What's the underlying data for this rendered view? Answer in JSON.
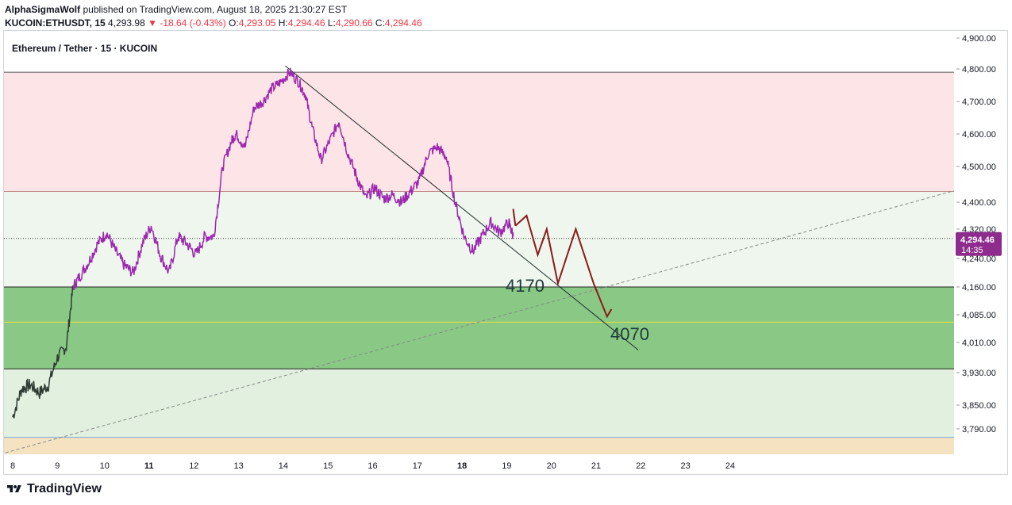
{
  "header": {
    "author": "AlphaSigmaWolf",
    "published_text": "published on TradingView.com, August 18, 2025 21:30:27 EST",
    "symbol": "KUCOIN:ETHUSDT, 15",
    "last": "4,293.98",
    "change": "-18.64 (-0.43%)",
    "open_label": "O:",
    "open": "4,293.05",
    "high_label": "H:",
    "high": "4,294.46",
    "low_label": "L:",
    "low": "4,290.66",
    "close_label": "C:",
    "close": "4,294.46"
  },
  "footer": {
    "brand": "TradingView"
  },
  "chart_data": {
    "type": "line",
    "title": "Ethereum / Tether · 15 · KUCOIN",
    "y_axis_ticks": [
      4900,
      4800,
      4700,
      4600,
      4500,
      4400,
      4320,
      4240,
      4160,
      4085,
      4010,
      3930,
      3850,
      3790
    ],
    "y_axis_labels": [
      "4,900.00",
      "4,800.00",
      "4,700.00",
      "4,600.00",
      "4,500.00",
      "4,400.00",
      "4,320.00",
      "4,240.00",
      "4,160.00",
      "4,085.00",
      "4,010.00",
      "3,930.00",
      "3,850.00",
      "3,790.00"
    ],
    "x_axis_ticks": [
      "8",
      "9",
      "10",
      "11",
      "12",
      "13",
      "14",
      "15",
      "16",
      "17",
      "18",
      "19",
      "20",
      "21",
      "22",
      "23",
      "24"
    ],
    "x_axis_bold": [
      "11",
      "18"
    ],
    "current_price_label": "4,294.46",
    "countdown_label": "14:35",
    "zones": [
      {
        "name": "resistance",
        "from": 4430,
        "to": 4790,
        "color": "#fde4e6"
      },
      {
        "name": "mid",
        "from": 4160,
        "to": 4430,
        "color": "#eef6ed"
      },
      {
        "name": "support",
        "from": 3940,
        "to": 4160,
        "color": "#89c985"
      },
      {
        "name": "lower",
        "from": 3760,
        "to": 3940,
        "color": "#e1f0df"
      },
      {
        "name": "bottom",
        "from": 3700,
        "to": 3760,
        "color": "#f5e2c0"
      }
    ],
    "levels": [
      {
        "value": 4790,
        "color": "#555555"
      },
      {
        "value": 4430,
        "color": "#c28a8a"
      },
      {
        "value": 4160,
        "color": "#222222"
      },
      {
        "value": 4065,
        "color": "#e7e33a"
      },
      {
        "value": 3940,
        "color": "#222222"
      },
      {
        "value": 3760,
        "color": "#7aa6d6"
      }
    ],
    "series": [
      {
        "name": "ETHUSDT",
        "x_days": [
          8.0,
          8.2,
          8.4,
          8.6,
          8.8,
          9.0,
          9.2,
          9.35,
          9.5,
          9.7,
          9.9,
          10.1,
          10.3,
          10.5,
          10.7,
          10.9,
          11.1,
          11.3,
          11.5,
          11.7,
          11.9,
          12.1,
          12.3,
          12.5,
          12.7,
          12.9,
          13.0,
          13.2,
          13.4,
          13.6,
          13.8,
          14.0,
          14.2,
          14.4,
          14.55,
          14.7,
          14.9,
          15.1,
          15.3,
          15.5,
          15.7,
          15.9,
          16.1,
          16.3,
          16.5,
          16.7,
          16.9,
          17.1,
          17.3,
          17.5,
          17.7,
          17.9,
          18.1,
          18.3,
          18.5,
          18.7,
          18.9,
          19.1,
          19.2
        ],
        "y": [
          3820,
          3890,
          3900,
          3880,
          3900,
          3970,
          4000,
          4160,
          4190,
          4230,
          4280,
          4310,
          4260,
          4220,
          4200,
          4280,
          4330,
          4250,
          4200,
          4300,
          4280,
          4250,
          4300,
          4300,
          4500,
          4580,
          4600,
          4560,
          4680,
          4700,
          4740,
          4760,
          4790,
          4760,
          4720,
          4620,
          4520,
          4580,
          4640,
          4540,
          4470,
          4410,
          4440,
          4410,
          4420,
          4400,
          4430,
          4460,
          4540,
          4560,
          4530,
          4400,
          4300,
          4260,
          4300,
          4340,
          4310,
          4340,
          4300
        ]
      },
      {
        "name": "projection",
        "x_days": [
          19.25,
          19.5,
          19.75,
          19.95,
          20.2,
          20.6,
          21.0,
          21.3,
          21.4
        ],
        "y": [
          4330,
          4360,
          4250,
          4320,
          4170,
          4320,
          4170,
          4080,
          4100
        ]
      }
    ],
    "annotations": [
      "4170",
      "4070"
    ]
  }
}
